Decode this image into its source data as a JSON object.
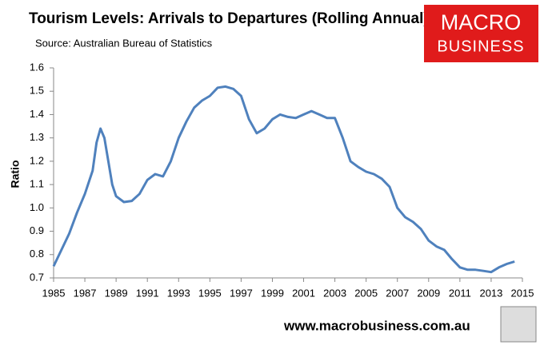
{
  "chart_data": {
    "type": "line",
    "title": "Tourism Levels: Arrivals to Departures (Rolling Annual)",
    "subtitle": "Source: Australian Bureau of Statistics",
    "y_label": "Ratio",
    "logo_top": "MACRO",
    "logo_bottom": "BUSINESS",
    "footer": "www.macrobusiness.com.au",
    "x": [
      1985.0,
      1985.5,
      1986.0,
      1986.5,
      1987.0,
      1987.5,
      1987.75,
      1988.0,
      1988.25,
      1988.5,
      1988.75,
      1989.0,
      1989.5,
      1990.0,
      1990.5,
      1991.0,
      1991.5,
      1992.0,
      1992.5,
      1993.0,
      1993.5,
      1994.0,
      1994.5,
      1995.0,
      1995.5,
      1996.0,
      1996.5,
      1997.0,
      1997.5,
      1998.0,
      1998.5,
      1999.0,
      1999.5,
      2000.0,
      2000.5,
      2001.0,
      2001.5,
      2002.0,
      2002.5,
      2003.0,
      2003.5,
      2004.0,
      2004.5,
      2005.0,
      2005.5,
      2006.0,
      2006.5,
      2007.0,
      2007.5,
      2008.0,
      2008.5,
      2009.0,
      2009.5,
      2010.0,
      2010.5,
      2011.0,
      2011.5,
      2012.0,
      2012.5,
      2013.0,
      2013.5,
      2014.0,
      2014.5
    ],
    "series": [
      {
        "name": "Ratio",
        "color": "#4f81bd",
        "values": [
          0.75,
          0.82,
          0.89,
          0.98,
          1.06,
          1.16,
          1.28,
          1.34,
          1.3,
          1.2,
          1.1,
          1.05,
          1.025,
          1.03,
          1.06,
          1.12,
          1.145,
          1.135,
          1.2,
          1.3,
          1.37,
          1.43,
          1.46,
          1.48,
          1.515,
          1.52,
          1.51,
          1.48,
          1.38,
          1.32,
          1.34,
          1.38,
          1.4,
          1.39,
          1.385,
          1.4,
          1.415,
          1.4,
          1.385,
          1.385,
          1.3,
          1.2,
          1.175,
          1.155,
          1.145,
          1.125,
          1.09,
          1.0,
          0.96,
          0.94,
          0.91,
          0.86,
          0.835,
          0.82,
          0.78,
          0.745,
          0.735,
          0.735,
          0.73,
          0.725,
          0.745,
          0.76,
          0.77
        ]
      }
    ],
    "xlim": [
      1985,
      2015
    ],
    "xticks": [
      1985,
      1987,
      1989,
      1991,
      1993,
      1995,
      1997,
      1999,
      2001,
      2003,
      2005,
      2007,
      2009,
      2011,
      2013,
      2015
    ],
    "ylim": [
      0.7,
      1.6
    ],
    "yticks": [
      0.7,
      0.8,
      0.9,
      {
        "value": 1,
        "label": "1.0"
      },
      1.1,
      1.2,
      1.3,
      1.4,
      1.5,
      1.6
    ],
    "grid": false
  }
}
